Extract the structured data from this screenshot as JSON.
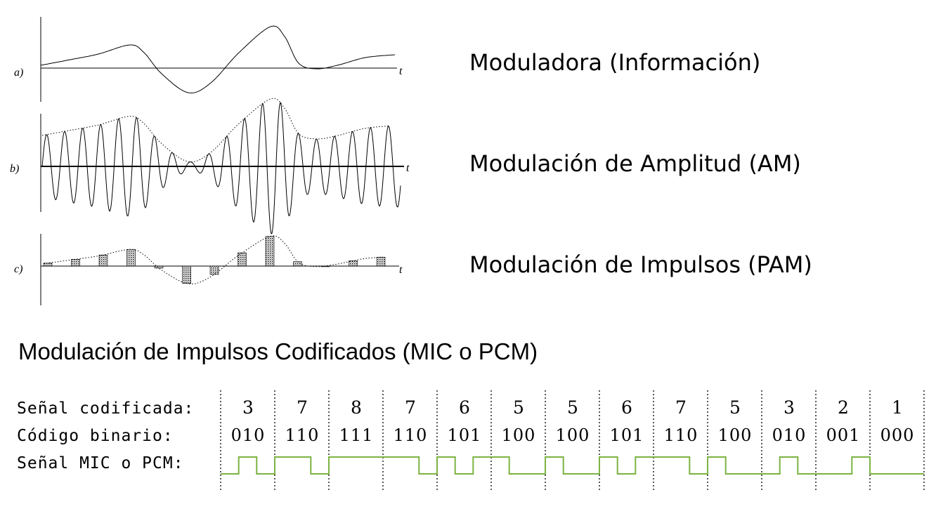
{
  "panels": [
    {
      "letter": "a)",
      "axis_label": "t",
      "description": "Moduladora (Información)"
    },
    {
      "letter": "b)",
      "axis_label": "t",
      "description": "Modulación de Amplitud (AM)"
    },
    {
      "letter": "c)",
      "axis_label": "t",
      "description": "Modulación de Impulsos (PAM)"
    }
  ],
  "pcm": {
    "title": "Modulación de Impulsos Codificados (MIC o PCM)",
    "labels": {
      "coded": "Señal codificada:",
      "binary": "Código binario:",
      "signal": "Señal MIC o PCM:"
    },
    "values": [
      "3",
      "7",
      "8",
      "7",
      "6",
      "5",
      "5",
      "6",
      "7",
      "5",
      "3",
      "2",
      "1"
    ],
    "codes": [
      "010",
      "110",
      "111",
      "110",
      "101",
      "100",
      "100",
      "101",
      "110",
      "100",
      "010",
      "001",
      "000"
    ],
    "signal_color": "#7cb342"
  }
}
